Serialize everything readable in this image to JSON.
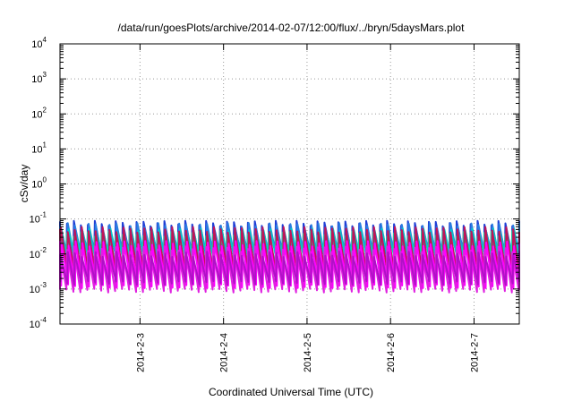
{
  "chart_data": {
    "type": "line",
    "title": "/data/run/goesPlots/archive/2014-02-07/12:00/flux/../bryn/5daysMars.plot",
    "xlabel": "Coordinated Universal Time (UTC)",
    "ylabel": "cSv/day",
    "yscale": "log",
    "ylim": [
      0.0001,
      10000
    ],
    "xlim": [
      "2014-02-02T01:00",
      "2014-02-07T13:00"
    ],
    "x_ticks": [
      "2014-2-3",
      "2014-2-4",
      "2014-2-5",
      "2014-2-6",
      "2014-2-7"
    ],
    "y_ticks": [
      {
        "base": "10",
        "exp": "4"
      },
      {
        "base": "10",
        "exp": "3"
      },
      {
        "base": "10",
        "exp": "2"
      },
      {
        "base": "10",
        "exp": "1"
      },
      {
        "base": "10",
        "exp": "0"
      },
      {
        "base": "10",
        "exp": "-1"
      },
      {
        "base": "10",
        "exp": "-2"
      },
      {
        "base": "10",
        "exp": "-3"
      },
      {
        "base": "10",
        "exp": "-4"
      }
    ],
    "grid": true,
    "sawtooth_period_hours": 2,
    "series": [
      {
        "color": "#1f3fd6",
        "peak": 0.075,
        "trough": 0.011
      },
      {
        "color": "#2a7fe0",
        "peak": 0.065,
        "trough": 0.009
      },
      {
        "color": "#00c8c8",
        "peak": 0.045,
        "trough": 0.006
      },
      {
        "color": "#20d8a0",
        "peak": 0.038,
        "trough": 0.005
      },
      {
        "color": "#c0145a",
        "peak": 0.05,
        "trough": 0.003
      },
      {
        "color": "#ff00ff",
        "peak": 0.02,
        "trough": 0.0012
      },
      {
        "color": "#e020e0",
        "peak": 0.014,
        "trough": 0.0009
      },
      {
        "color": "#b010c8",
        "peak": 0.01,
        "trough": 0.0015
      }
    ]
  }
}
